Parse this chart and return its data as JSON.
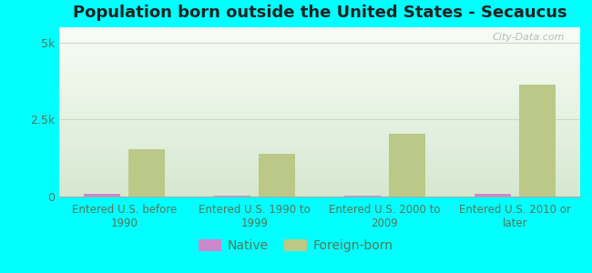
{
  "title": "Population born outside the United States - Secaucus",
  "background_color": "#00FFFF",
  "plot_bg_top": "#d6e8d0",
  "plot_bg_bottom": "#f8fdf6",
  "categories": [
    "Entered U.S. before\n1990",
    "Entered U.S. 1990 to\n1999",
    "Entered U.S. 2000 to\n2009",
    "Entered U.S. 2010 or\nlater"
  ],
  "native_values": [
    100,
    15,
    15,
    100
  ],
  "foreign_born_values": [
    1550,
    1380,
    2050,
    3650
  ],
  "native_color": "#cc88cc",
  "foreign_born_color": "#bbc888",
  "ylim": [
    0,
    5500
  ],
  "ytick_vals": [
    0,
    2500,
    5000
  ],
  "ytick_labels": [
    "0",
    "2.5k",
    "5k"
  ],
  "bar_width": 0.28,
  "legend_native": "Native",
  "legend_foreign": "Foreign-born",
  "watermark": "City-Data.com",
  "grid_color": "#d0d8c0",
  "axis_label_color": "#557755",
  "title_fontsize": 13,
  "tick_fontsize": 9,
  "legend_fontsize": 10
}
